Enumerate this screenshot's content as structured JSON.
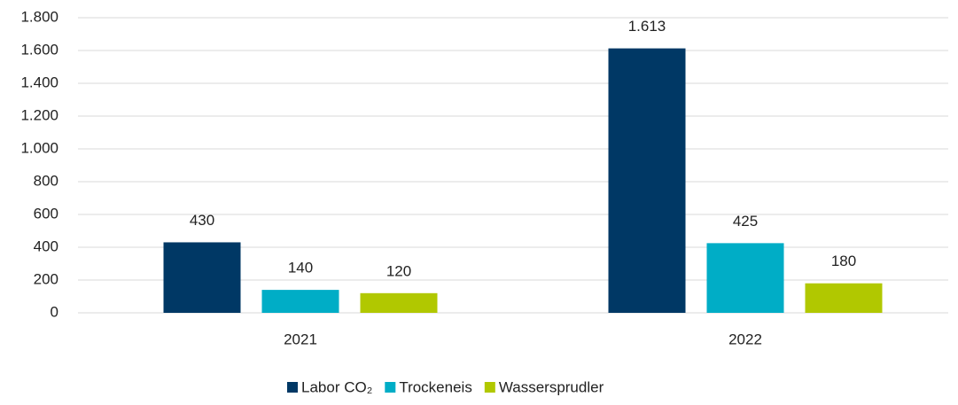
{
  "chart_data": {
    "type": "bar",
    "categories": [
      "2021",
      "2022"
    ],
    "series": [
      {
        "name": "Labor CO₂",
        "color": "#003865",
        "values": [
          430,
          1613
        ],
        "value_labels": [
          "430",
          "1.613"
        ]
      },
      {
        "name": "Trockeneis",
        "color": "#00adc6",
        "values": [
          140,
          425
        ]
      },
      {
        "name": "Wassersprudler",
        "color": "#b1c800",
        "values": [
          120,
          180
        ]
      }
    ],
    "ylim": [
      0,
      1800
    ],
    "yticks": [
      0,
      200,
      400,
      600,
      800,
      {
        "value": 1000,
        "label": "1.000"
      },
      {
        "value": 1200,
        "label": "1.200"
      },
      {
        "value": 1400,
        "label": "1.400"
      },
      {
        "value": 1600,
        "label": "1.600"
      },
      {
        "value": 1800,
        "label": "1.800"
      }
    ],
    "grid": true,
    "legend": "bottom"
  }
}
